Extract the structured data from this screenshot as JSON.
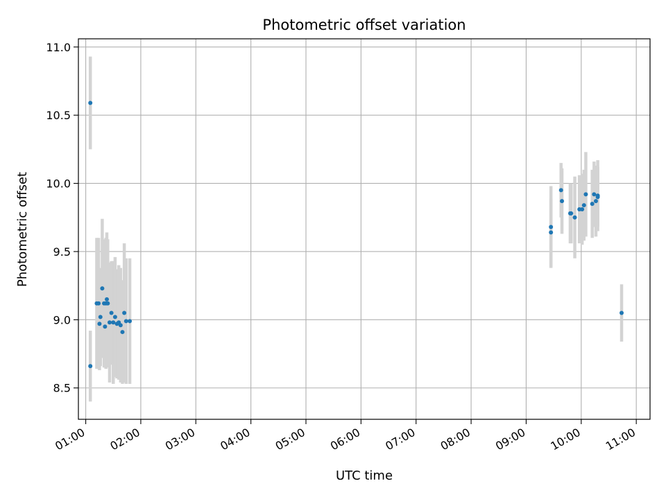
{
  "chart_data": {
    "type": "scatter",
    "title": "Photometric offset variation",
    "xlabel": "UTC time",
    "ylabel": "Photometric offset",
    "xlim": [
      "00:52",
      "11:15"
    ],
    "ylim": [
      8.27,
      11.06
    ],
    "x_ticks": [
      "01:00",
      "02:00",
      "03:00",
      "04:00",
      "05:00",
      "06:00",
      "07:00",
      "08:00",
      "09:00",
      "10:00",
      "11:00"
    ],
    "y_ticks": [
      8.5,
      9.0,
      9.5,
      10.0,
      10.5,
      11.0
    ],
    "y_tick_labels": [
      "8.5",
      "9.0",
      "9.5",
      "10.0",
      "10.5",
      "11.0"
    ],
    "grid": true,
    "marker_color": "#1f77b4",
    "errorbar_color": "#d3d3d3",
    "points": [
      {
        "t": "01:05",
        "y": 10.59,
        "err": 0.34
      },
      {
        "t": "01:05",
        "y": 8.66,
        "err": 0.26
      },
      {
        "t": "01:12",
        "y": 9.12,
        "err": 0.48
      },
      {
        "t": "01:14",
        "y": 9.12,
        "err": 0.48
      },
      {
        "t": "01:15",
        "y": 8.97,
        "err": 0.34
      },
      {
        "t": "01:16",
        "y": 9.02,
        "err": 0.36
      },
      {
        "t": "01:18",
        "y": 9.23,
        "err": 0.51
      },
      {
        "t": "01:20",
        "y": 9.12,
        "err": 0.47
      },
      {
        "t": "01:21",
        "y": 8.95,
        "err": 0.3
      },
      {
        "t": "01:22",
        "y": 9.12,
        "err": 0.48
      },
      {
        "t": "01:23",
        "y": 9.15,
        "err": 0.49
      },
      {
        "t": "01:24",
        "y": 9.12,
        "err": 0.47
      },
      {
        "t": "01:26",
        "y": 8.98,
        "err": 0.44
      },
      {
        "t": "01:28",
        "y": 9.05,
        "err": 0.38
      },
      {
        "t": "01:30",
        "y": 8.98,
        "err": 0.45
      },
      {
        "t": "01:32",
        "y": 9.02,
        "err": 0.44
      },
      {
        "t": "01:34",
        "y": 8.97,
        "err": 0.4
      },
      {
        "t": "01:36",
        "y": 8.98,
        "err": 0.42
      },
      {
        "t": "01:38",
        "y": 8.96,
        "err": 0.42
      },
      {
        "t": "01:40",
        "y": 8.91,
        "err": 0.38
      },
      {
        "t": "01:42",
        "y": 9.05,
        "err": 0.51
      },
      {
        "t": "01:44",
        "y": 8.99,
        "err": 0.46
      },
      {
        "t": "01:48",
        "y": 8.99,
        "err": 0.46
      },
      {
        "t": "09:27",
        "y": 9.68,
        "err": 0.3
      },
      {
        "t": "09:27",
        "y": 9.64,
        "err": 0.25
      },
      {
        "t": "09:38",
        "y": 9.95,
        "err": 0.2
      },
      {
        "t": "09:39",
        "y": 9.87,
        "err": 0.24
      },
      {
        "t": "09:48",
        "y": 9.78,
        "err": 0.22
      },
      {
        "t": "09:49",
        "y": 9.78,
        "err": 0.22
      },
      {
        "t": "09:53",
        "y": 9.75,
        "err": 0.3
      },
      {
        "t": "09:58",
        "y": 9.81,
        "err": 0.25
      },
      {
        "t": "10:01",
        "y": 9.81,
        "err": 0.26
      },
      {
        "t": "10:03",
        "y": 9.84,
        "err": 0.26
      },
      {
        "t": "10:05",
        "y": 9.92,
        "err": 0.31
      },
      {
        "t": "10:12",
        "y": 9.85,
        "err": 0.25
      },
      {
        "t": "10:14",
        "y": 9.92,
        "err": 0.24
      },
      {
        "t": "10:16",
        "y": 9.87,
        "err": 0.26
      },
      {
        "t": "10:18",
        "y": 9.91,
        "err": 0.26
      },
      {
        "t": "10:18",
        "y": 9.9,
        "err": 0.22
      },
      {
        "t": "10:44",
        "y": 9.05,
        "err": 0.21
      }
    ]
  }
}
